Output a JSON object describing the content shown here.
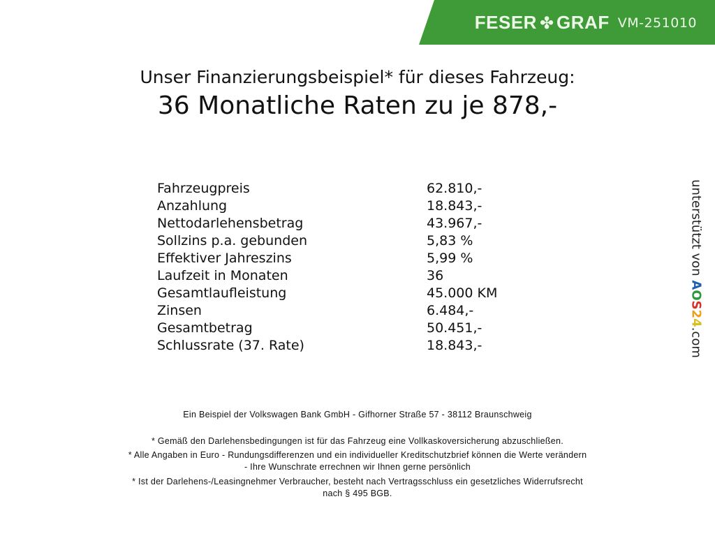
{
  "banner": {
    "brand_left": "FESER",
    "brand_right": "GRAF",
    "code": "VM-251010",
    "color": "#3f9b37"
  },
  "header": {
    "line1": "Unser Finanzierungsbeispiel* für dieses Fahrzeug:",
    "line2": "36 Monatliche Raten zu je 878,-"
  },
  "table": [
    {
      "label": "Fahrzeugpreis",
      "value": "62.810,-"
    },
    {
      "label": "Anzahlung",
      "value": "18.843,-"
    },
    {
      "label": "Nettodarlehensbetrag",
      "value": "43.967,-"
    },
    {
      "label": "Sollzins p.a. gebunden",
      "value": "5,83 %"
    },
    {
      "label": "Effektiver Jahreszins",
      "value": "5,99 %"
    },
    {
      "label": "Laufzeit in Monaten",
      "value": "36"
    },
    {
      "label": "Gesamtlaufleistung",
      "value": "45.000 KM"
    },
    {
      "label": "Zinsen",
      "value": "6.484,-"
    },
    {
      "label": "Gesamtbetrag",
      "value": "50.451,-"
    },
    {
      "label": "Schlussrate (37. Rate)",
      "value": "18.843,-"
    }
  ],
  "side": {
    "text": "unterstützt von",
    "logo": "AOS24",
    "domain": ".com"
  },
  "footer": {
    "bank": "Ein Beispiel der Volkswagen Bank GmbH - Gifhorner Straße 57 - 38112 Braunschweig",
    "note1": "* Gemäß den Darlehensbedingungen ist für das Fahrzeug eine Vollkaskoversicherung abzuschließen.",
    "note2a": "* Alle Angaben in Euro - Rundungsdifferenzen und ein individueller Kreditschutzbrief können die Werte verändern",
    "note2b": "- Ihre Wunschrate errechnen wir Ihnen gerne persönlich",
    "note3a": "* Ist der Darlehens-/Leasingnehmer Verbraucher, besteht nach Vertragsschluss ein gesetzliches Widerrufsrecht",
    "note3b": "nach § 495 BGB."
  }
}
